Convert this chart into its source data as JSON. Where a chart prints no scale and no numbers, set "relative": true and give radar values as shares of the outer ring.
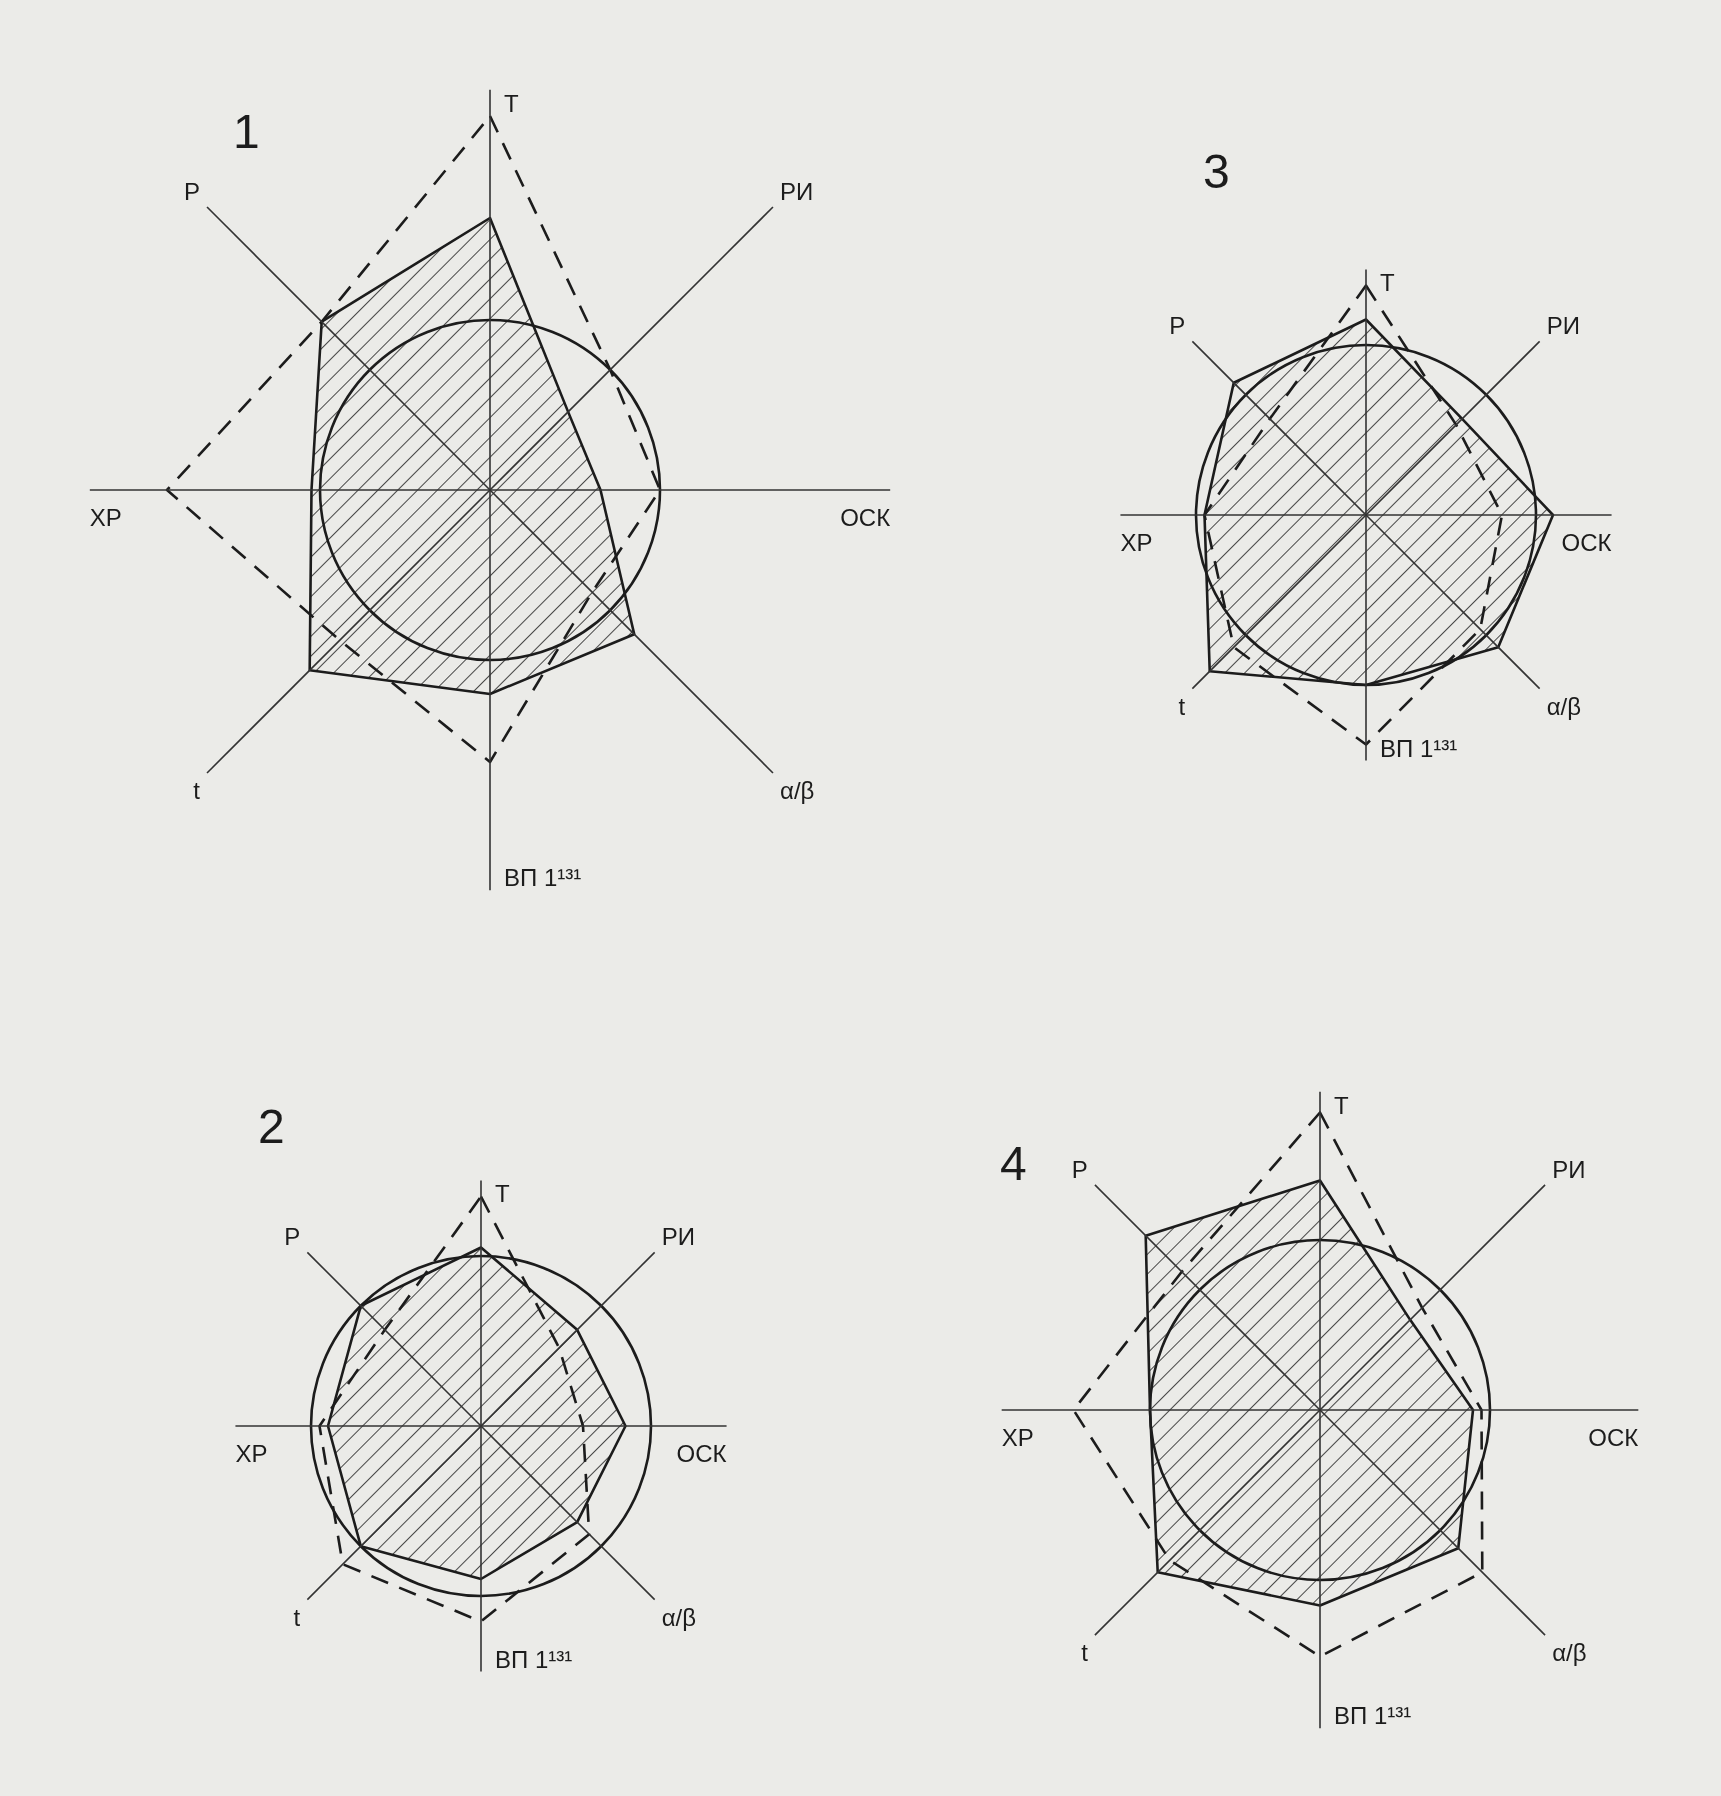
{
  "chart_data": [
    {
      "type": "radar",
      "title": "1",
      "categories": [
        "Т",
        "РИ",
        "ОСК",
        "α/β",
        "ВП 1¹³¹",
        "t",
        "ХР",
        "Р"
      ],
      "relative": true,
      "grid": true,
      "series": [
        {
          "color": "#1c1c1c",
          "line_style": "solid",
          "values": [
            1.6,
            0.65,
            0.65,
            1.2,
            1.2,
            1.5,
            1.05,
            1.4
          ]
        },
        {
          "color": "#1c1c1c",
          "line_style": "dashed",
          "values": [
            2.2,
            1.0,
            1.0,
            0.85,
            1.6,
            1.25,
            1.9,
            1.4
          ]
        }
      ]
    },
    {
      "type": "radar",
      "title": "3",
      "categories": [
        "Т",
        "РИ",
        "ОСК",
        "α/β",
        "ВП 1¹³¹",
        "t",
        "ХР",
        "Р"
      ],
      "relative": true,
      "grid": true,
      "series": [
        {
          "color": "#1c1c1c",
          "line_style": "solid",
          "values": [
            1.15,
            0.8,
            1.1,
            1.1,
            1.0,
            1.3,
            0.95,
            1.1
          ]
        },
        {
          "color": "#1c1c1c",
          "line_style": "dashed",
          "values": [
            1.35,
            0.75,
            0.8,
            0.95,
            1.35,
            1.1,
            0.95,
            0.8
          ]
        }
      ]
    },
    {
      "type": "radar",
      "title": "2",
      "categories": [
        "Т",
        "РИ",
        "ОСК",
        "α/β",
        "ВП 1¹³¹",
        "t",
        "ХР",
        "Р"
      ],
      "relative": true,
      "grid": true,
      "series": [
        {
          "color": "#1c1c1c",
          "line_style": "solid",
          "values": [
            1.05,
            0.8,
            0.85,
            0.8,
            0.9,
            1.0,
            0.9,
            1.0
          ]
        },
        {
          "color": "#1c1c1c",
          "line_style": "dashed",
          "values": [
            1.35,
            0.65,
            0.6,
            0.9,
            1.15,
            1.15,
            0.95,
            0.8
          ]
        }
      ]
    },
    {
      "type": "radar",
      "title": "4",
      "categories": [
        "Т",
        "РИ",
        "ОСК",
        "α/β",
        "ВП 1¹³¹",
        "t",
        "ХР",
        "Р"
      ],
      "relative": true,
      "grid": true,
      "series": [
        {
          "color": "#1c1c1c",
          "line_style": "solid",
          "values": [
            1.35,
            0.75,
            0.9,
            1.15,
            1.15,
            1.35,
            1.0,
            1.45
          ]
        },
        {
          "color": "#1c1c1c",
          "line_style": "dashed",
          "values": [
            1.75,
            0.85,
            0.95,
            1.35,
            1.45,
            1.25,
            1.45,
            1.15
          ]
        }
      ]
    }
  ]
}
